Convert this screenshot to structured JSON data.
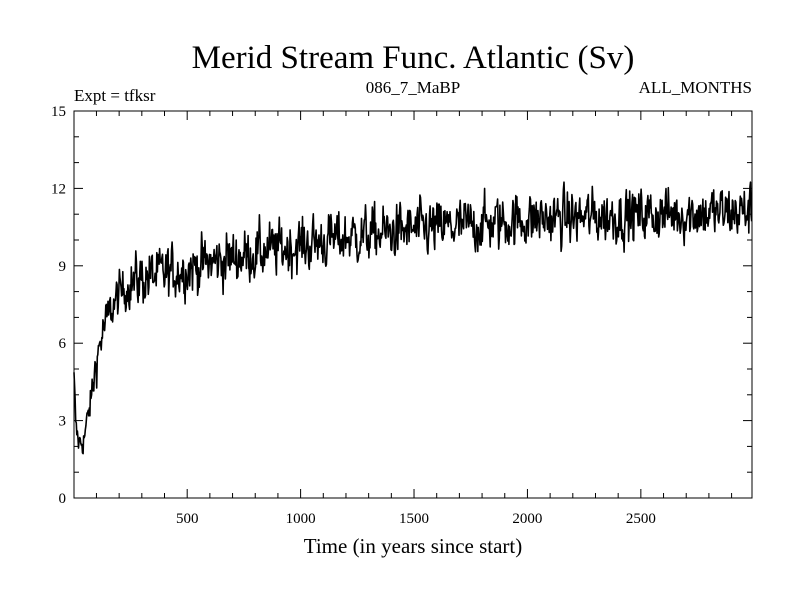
{
  "chart_data": {
    "type": "line",
    "title": "Merid Stream Func. Atlantic (Sv)",
    "subtitle_left": "Expt = tfksr",
    "subtitle_center": "086_7_MaBP",
    "subtitle_right": "ALL_MONTHS",
    "xlabel": "Time (in years since start)",
    "ylabel": "",
    "xlim": [
      1,
      2990
    ],
    "ylim": [
      0,
      15
    ],
    "x_ticks": [
      500,
      1000,
      1500,
      2000,
      2500
    ],
    "x_minor_step": 100,
    "y_ticks": [
      0,
      3,
      6,
      9,
      12,
      15
    ],
    "y_minor_step": 1,
    "grid": false,
    "series": [
      {
        "name": "Merid Stream Func. Atlantic",
        "color": "#000000",
        "anchor_x": [
          1,
          10,
          25,
          45,
          60,
          80,
          100,
          130,
          160,
          200,
          250,
          300,
          400,
          500,
          600,
          700,
          800,
          1000,
          1200,
          1500,
          1800,
          2000,
          2300,
          2600,
          2990
        ],
        "anchor_y": [
          4.6,
          2.6,
          2.1,
          2.3,
          3.0,
          4.0,
          5.4,
          6.5,
          7.2,
          7.9,
          8.3,
          8.5,
          8.7,
          8.9,
          9.1,
          9.3,
          9.5,
          9.8,
          10.1,
          10.4,
          10.6,
          10.8,
          10.9,
          11.0,
          11.1
        ],
        "noise_amplitude": 0.75,
        "sample_step_years": 2.5
      }
    ]
  }
}
